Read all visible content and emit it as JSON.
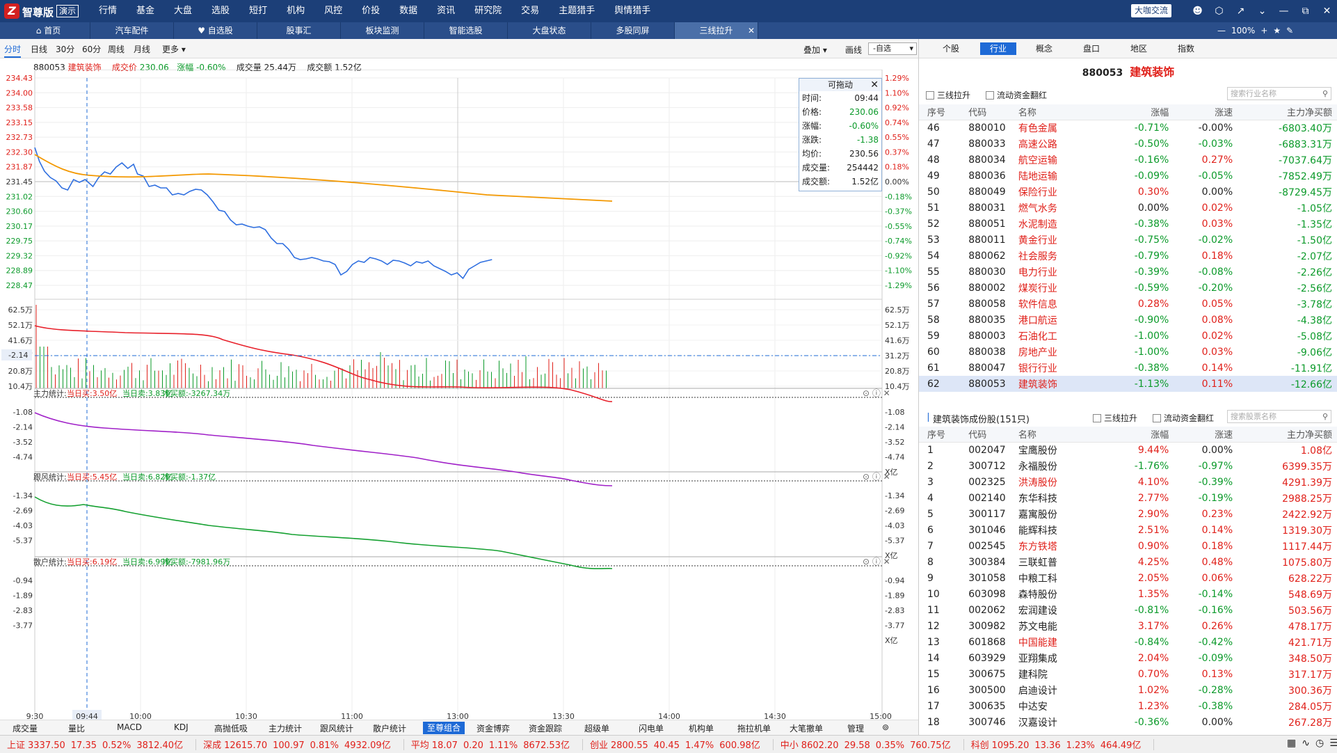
{
  "app": {
    "brand": "智尊版",
    "demo": "演示",
    "daka_btn": "大咖交流"
  },
  "top_menu": [
    "行情",
    "基金",
    "大盘",
    "选股",
    "短打",
    "机构",
    "风控",
    "价投",
    "数据",
    "资讯",
    "研究院",
    "交易",
    "主题猎手",
    "舆情猎手"
  ],
  "window_icons": [
    "user-icon",
    "hexagon-icon",
    "shrink-icon",
    "minimize-icon",
    "restore-icon",
    "close-icon"
  ],
  "tabs": [
    "首页",
    "汽车配件",
    "自选股",
    "股事汇",
    "板块监测",
    "智能选股",
    "大盘状态",
    "多股同屏",
    "三线拉升"
  ],
  "zoom": {
    "value": "100%",
    "plus": "+",
    "star": "★",
    "pin": "✎"
  },
  "periods": [
    "分时",
    "日线",
    "30分",
    "60分",
    "周线",
    "月线",
    "更多"
  ],
  "toolbar": {
    "overlay": "叠加",
    "draw": "画线",
    "watch": "-自选"
  },
  "chart_head": {
    "code": "880053",
    "name": "建筑装饰",
    "price_label": "成交价",
    "price": "230.06",
    "change_label": "涨幅",
    "change": "-0.60%",
    "vol_label": "成交量",
    "vol": "25.44万",
    "amt_label": "成交额",
    "amt": "1.52亿"
  },
  "tooltip": {
    "title": "可拖动",
    "rows": [
      [
        "时间:",
        "09:44"
      ],
      [
        "价格:",
        "230.06"
      ],
      [
        "涨幅:",
        "-0.60%"
      ],
      [
        "涨跌:",
        "-1.38"
      ],
      [
        "均价:",
        "230.56"
      ],
      [
        "成交量:",
        "254442"
      ],
      [
        "成交额:",
        "1.52亿"
      ]
    ]
  },
  "price_axis_left": [
    "234.43",
    "234.00",
    "233.58",
    "233.15",
    "232.73",
    "232.30",
    "231.87",
    "231.45",
    "231.02",
    "230.60",
    "230.17",
    "229.75",
    "229.32",
    "228.89",
    "228.47"
  ],
  "price_axis_right": [
    "1.29%",
    "1.10%",
    "0.92%",
    "0.74%",
    "0.55%",
    "0.37%",
    "0.18%",
    "0.00%",
    "-0.18%",
    "-0.37%",
    "-0.55%",
    "-0.74%",
    "-0.92%",
    "-1.10%",
    "-1.29%"
  ],
  "vol_axis": [
    "62.5万",
    "52.1万",
    "41.6万",
    "31.2万",
    "20.8万",
    "10.4万"
  ],
  "panels": [
    {
      "name": "主力统计",
      "buy": "当日买:3.50亿",
      "sell": "当日卖:3.83亿",
      "net": "净买额:-3267.34万",
      "axis": [
        "-1.08",
        "-2.14",
        "-3.52",
        "-4.74",
        "X亿"
      ],
      "color": "#e8202a"
    },
    {
      "name": "跟风统计",
      "buy": "当日买:5.45亿",
      "sell": "当日卖:6.82亿",
      "net": "净买额:-1.37亿",
      "axis": [
        "-1.34",
        "-2.69",
        "-4.03",
        "-5.37",
        "X亿"
      ],
      "color": "#a020c8"
    },
    {
      "name": "散户统计",
      "buy": "当日买:6.19亿",
      "sell": "当日卖:6.99亿",
      "net": "净买额:-7981.96万",
      "axis": [
        "-0.94",
        "-1.89",
        "-2.83",
        "-3.77",
        "X亿"
      ],
      "color": "#14a030"
    }
  ],
  "time_axis": [
    "9:30",
    "09:44",
    "10:00",
    "10:30",
    "11:00",
    "13:00",
    "13:30",
    "14:00",
    "14:30",
    "15:00"
  ],
  "bottom_tabs": [
    "成交量",
    "量比",
    "MACD",
    "KDJ",
    "高抛低吸",
    "主力统计",
    "跟风统计",
    "散户统计",
    "至尊组合",
    "资金博弈",
    "资金跟踪",
    "超级单",
    "闪电单",
    "机构单",
    "拖拉机单",
    "大笔撤单",
    "管理"
  ],
  "right_tabs": [
    "个股",
    "行业",
    "概念",
    "盘口",
    "地区",
    "指数"
  ],
  "sector": {
    "code": "880053",
    "name": "建筑装饰"
  },
  "filters": {
    "three_line": "三线拉升",
    "flow_red": "流动资金翻红",
    "search_industry": "搜索行业名称",
    "search_stock": "搜索股票名称"
  },
  "industry_headers": [
    "序号",
    "代码",
    "名称",
    "涨幅",
    "涨速",
    "主力净买额"
  ],
  "industries": [
    [
      "46",
      "880010",
      "有色金属",
      "-0.71%",
      "-0.00%",
      "-6803.40万"
    ],
    [
      "47",
      "880033",
      "高速公路",
      "-0.50%",
      "-0.03%",
      "-6883.31万"
    ],
    [
      "48",
      "880034",
      "航空运输",
      "-0.16%",
      "0.27%",
      "-7037.64万"
    ],
    [
      "49",
      "880036",
      "陆地运输",
      "-0.09%",
      "-0.05%",
      "-7852.49万"
    ],
    [
      "50",
      "880049",
      "保险行业",
      "0.30%",
      "0.00%",
      "-8729.45万"
    ],
    [
      "51",
      "880031",
      "燃气水务",
      "0.00%",
      "0.02%",
      "-1.05亿"
    ],
    [
      "52",
      "880051",
      "水泥制造",
      "-0.38%",
      "0.03%",
      "-1.35亿"
    ],
    [
      "53",
      "880011",
      "黄金行业",
      "-0.75%",
      "-0.02%",
      "-1.50亿"
    ],
    [
      "54",
      "880062",
      "社会服务",
      "-0.79%",
      "0.18%",
      "-2.07亿"
    ],
    [
      "55",
      "880030",
      "电力行业",
      "-0.39%",
      "-0.08%",
      "-2.26亿"
    ],
    [
      "56",
      "880002",
      "煤炭行业",
      "-0.59%",
      "-0.20%",
      "-2.56亿"
    ],
    [
      "57",
      "880058",
      "软件信息",
      "0.28%",
      "0.05%",
      "-3.78亿"
    ],
    [
      "58",
      "880035",
      "港口航运",
      "-0.90%",
      "0.08%",
      "-4.38亿"
    ],
    [
      "59",
      "880003",
      "石油化工",
      "-1.00%",
      "0.02%",
      "-5.08亿"
    ],
    [
      "60",
      "880038",
      "房地产业",
      "-1.00%",
      "0.03%",
      "-9.06亿"
    ],
    [
      "61",
      "880047",
      "银行行业",
      "-0.38%",
      "0.14%",
      "-11.91亿"
    ],
    [
      "62",
      "880053",
      "建筑装饰",
      "-1.13%",
      "0.11%",
      "-12.66亿"
    ]
  ],
  "components_title": "建筑装饰成份股(151只)",
  "stock_headers": [
    "序号",
    "代码",
    "名称",
    "涨幅",
    "涨速",
    "主力净买额"
  ],
  "stocks": [
    [
      "1",
      "002047",
      "宝鹰股份",
      "9.44%",
      "0.00%",
      "1.08亿",
      "blk"
    ],
    [
      "2",
      "300712",
      "永福股份",
      "-1.76%",
      "-0.97%",
      "6399.35万",
      "blk"
    ],
    [
      "3",
      "002325",
      "洪涛股份",
      "4.10%",
      "-0.39%",
      "4291.39万",
      "red"
    ],
    [
      "4",
      "002140",
      "东华科技",
      "2.77%",
      "-0.19%",
      "2988.25万",
      "blk"
    ],
    [
      "5",
      "300117",
      "嘉寓股份",
      "2.90%",
      "0.23%",
      "2422.92万",
      "blk"
    ],
    [
      "6",
      "301046",
      "能辉科技",
      "2.51%",
      "0.14%",
      "1319.30万",
      "blk"
    ],
    [
      "7",
      "002545",
      "东方铁塔",
      "0.90%",
      "0.18%",
      "1117.44万",
      "red"
    ],
    [
      "8",
      "300384",
      "三联虹普",
      "4.25%",
      "0.48%",
      "1075.80万",
      "blk"
    ],
    [
      "9",
      "301058",
      "中粮工科",
      "2.05%",
      "0.06%",
      "628.22万",
      "blk"
    ],
    [
      "10",
      "603098",
      "森特股份",
      "1.35%",
      "-0.14%",
      "548.69万",
      "blk"
    ],
    [
      "11",
      "002062",
      "宏润建设",
      "-0.81%",
      "-0.16%",
      "503.56万",
      "blk"
    ],
    [
      "12",
      "300982",
      "苏文电能",
      "3.17%",
      "0.26%",
      "478.17万",
      "blk"
    ],
    [
      "13",
      "601868",
      "中国能建",
      "-0.84%",
      "-0.42%",
      "421.71万",
      "red"
    ],
    [
      "14",
      "603929",
      "亚翔集成",
      "2.04%",
      "-0.09%",
      "348.50万",
      "blk"
    ],
    [
      "15",
      "300675",
      "建科院",
      "0.70%",
      "0.13%",
      "317.17万",
      "blk"
    ],
    [
      "16",
      "300500",
      "启迪设计",
      "1.02%",
      "-0.28%",
      "300.36万",
      "blk"
    ],
    [
      "17",
      "300635",
      "中达安",
      "1.23%",
      "-0.38%",
      "284.05万",
      "blk"
    ],
    [
      "18",
      "300746",
      "汉嘉设计",
      "-0.36%",
      "0.00%",
      "267.28万",
      "blk"
    ]
  ],
  "status": [
    {
      "name": "上证",
      "v": "3337.50",
      "c": "17.35",
      "p": "0.52%",
      "a": "3812.40亿"
    },
    {
      "name": "深成",
      "v": "12615.70",
      "c": "100.97",
      "p": "0.81%",
      "a": "4932.09亿"
    },
    {
      "name": "平均",
      "v": "18.07",
      "c": "0.20",
      "p": "1.11%",
      "a": "8672.53亿"
    },
    {
      "name": "创业",
      "v": "2800.55",
      "c": "40.45",
      "p": "1.47%",
      "a": "600.98亿"
    },
    {
      "name": "中小",
      "v": "8602.20",
      "c": "29.58",
      "p": "0.35%",
      "a": "760.75亿"
    },
    {
      "name": "科创",
      "v": "1095.20",
      "c": "13.36",
      "p": "1.23%",
      "a": "464.49亿"
    }
  ],
  "colors": {
    "up": "#e0201a",
    "down": "#0b9a2a",
    "price_line": "#2f6fe0",
    "avg_line": "#f39800",
    "accent": "#1e6ad6",
    "titlebar": "#1c3f78"
  }
}
